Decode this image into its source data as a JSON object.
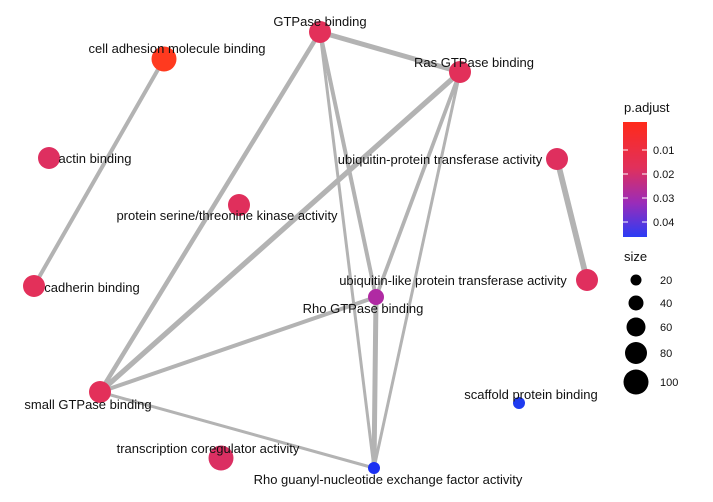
{
  "network": {
    "nodes": [
      {
        "id": "gtpase",
        "label": "GTPase binding",
        "color": "#e3305a",
        "size_key": "m"
      },
      {
        "id": "cam",
        "label": "cell adhesion molecule binding",
        "color": "#ff3a1f",
        "size_key": "l"
      },
      {
        "id": "ras",
        "label": "Ras GTPase binding",
        "color": "#e2305a",
        "size_key": "m"
      },
      {
        "id": "actin",
        "label": "actin binding",
        "color": "#de2f60",
        "size_key": "m"
      },
      {
        "id": "ubtrans",
        "label": "ubiquitin-protein transferase activity",
        "color": "#df2f5e",
        "size_key": "m"
      },
      {
        "id": "serthr",
        "label": "protein serine/threonine kinase activity",
        "color": "#e02f5c",
        "size_key": "m"
      },
      {
        "id": "cadherin",
        "label": "cadherin binding",
        "color": "#e3305a",
        "size_key": "m"
      },
      {
        "id": "ublike",
        "label": "ubiquitin-like protein transferase activity",
        "color": "#e02f5e",
        "size_key": "m"
      },
      {
        "id": "rho",
        "label": "Rho GTPase binding",
        "color": "#b02aa3",
        "size_key": "s"
      },
      {
        "id": "small",
        "label": "small GTPase binding",
        "color": "#e3305a",
        "size_key": "m"
      },
      {
        "id": "scaffold",
        "label": "scaffold protein binding",
        "color": "#1f3bf0",
        "size_key": "xs"
      },
      {
        "id": "txn",
        "label": "transcription coregulator activity",
        "color": "#db2f62",
        "size_key": "l"
      },
      {
        "id": "rhogef",
        "label": "Rho guanyl-nucleotide exchange factor activity",
        "color": "#1b30f2",
        "size_key": "xs"
      }
    ],
    "edges": [
      {
        "source": "cam",
        "target": "cadherin",
        "weight": 0.5
      },
      {
        "source": "gtpase",
        "target": "ras",
        "weight": 0.7
      },
      {
        "source": "gtpase",
        "target": "small",
        "weight": 0.6
      },
      {
        "source": "gtpase",
        "target": "rho",
        "weight": 0.5
      },
      {
        "source": "gtpase",
        "target": "rhogef",
        "weight": 0.3
      },
      {
        "source": "ras",
        "target": "small",
        "weight": 0.75
      },
      {
        "source": "ras",
        "target": "rho",
        "weight": 0.45
      },
      {
        "source": "ras",
        "target": "rhogef",
        "weight": 0.3
      },
      {
        "source": "ubtrans",
        "target": "ublike",
        "weight": 0.85
      },
      {
        "source": "small",
        "target": "rho",
        "weight": 0.5
      },
      {
        "source": "small",
        "target": "rhogef",
        "weight": 0.3
      },
      {
        "source": "rho",
        "target": "rhogef",
        "weight": 0.7
      }
    ]
  },
  "legend": {
    "padjust": {
      "title": "p.adjust",
      "ticks": [
        "0.01",
        "0.02",
        "0.03",
        "0.04"
      ],
      "gradient_colors": [
        "#ff2a1a",
        "#e0305c",
        "#9b2cb8",
        "#2b3cf5"
      ]
    },
    "size": {
      "title": "size",
      "items": [
        "20",
        "40",
        "60",
        "80",
        "100"
      ]
    }
  }
}
